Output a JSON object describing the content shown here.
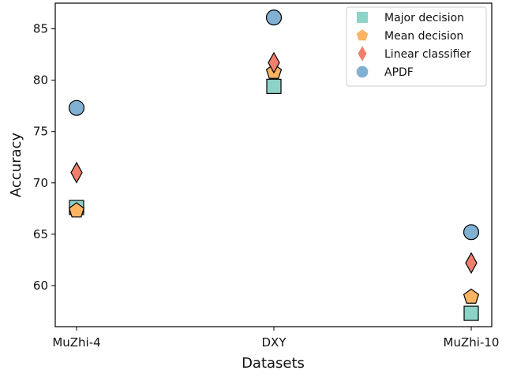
{
  "chart_data": {
    "type": "scatter",
    "title": "",
    "xlabel": "Datasets",
    "ylabel": "Accuracy",
    "categories": [
      "MuZhi-4",
      "DXY",
      "MuZhi-10"
    ],
    "ylim": [
      56.0,
      87.5
    ],
    "yticks": [
      60,
      65,
      70,
      75,
      80,
      85
    ],
    "grid": false,
    "legend_position": "top-right",
    "series": [
      {
        "name": "Major decision",
        "marker": "square",
        "color": "#8dd3c7",
        "values": [
          67.6,
          79.4,
          57.3
        ]
      },
      {
        "name": "Mean decision",
        "marker": "pentagon",
        "color": "#fdb462",
        "values": [
          67.3,
          80.8,
          58.9
        ]
      },
      {
        "name": "Linear classifier",
        "marker": "diamond",
        "color": "#f07f6b",
        "values": [
          71.0,
          81.7,
          62.2
        ]
      },
      {
        "name": "APDF",
        "marker": "circle",
        "color": "#80b1d3",
        "values": [
          77.3,
          86.1,
          65.2
        ]
      }
    ]
  }
}
